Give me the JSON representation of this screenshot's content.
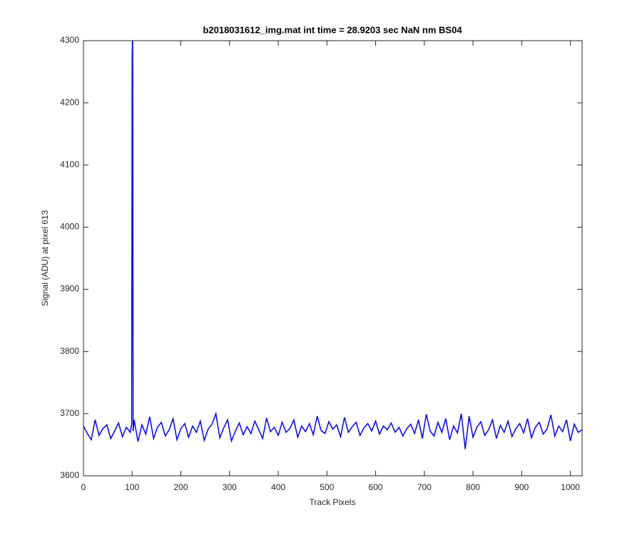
{
  "chart_data": {
    "type": "line",
    "title": "b2018031612_img.mat int time = 28.9203 sec  NaN nm BS04",
    "x_label": "Track Pixels",
    "y_label": "Signal (ADU) at pixel 613",
    "x": [
      0,
      8,
      16,
      24,
      32,
      40,
      48,
      56,
      64,
      72,
      80,
      88,
      96,
      99,
      100,
      101,
      102,
      104,
      112,
      120,
      128,
      136,
      144,
      152,
      160,
      168,
      176,
      184,
      192,
      200,
      208,
      216,
      224,
      232,
      240,
      248,
      256,
      264,
      272,
      280,
      288,
      296,
      304,
      312,
      320,
      328,
      336,
      344,
      352,
      360,
      368,
      376,
      384,
      392,
      400,
      408,
      416,
      424,
      432,
      440,
      448,
      456,
      464,
      472,
      480,
      488,
      496,
      504,
      512,
      520,
      528,
      536,
      544,
      552,
      560,
      568,
      576,
      584,
      592,
      600,
      608,
      616,
      624,
      632,
      640,
      648,
      656,
      664,
      672,
      680,
      688,
      696,
      704,
      712,
      720,
      728,
      736,
      744,
      752,
      760,
      768,
      776,
      784,
      792,
      800,
      808,
      816,
      824,
      832,
      840,
      848,
      856,
      864,
      872,
      880,
      888,
      896,
      904,
      912,
      920,
      928,
      936,
      944,
      952,
      960,
      968,
      976,
      984,
      992,
      1000,
      1008,
      1016,
      1024
    ],
    "values": [
      3680,
      3668,
      3658,
      3690,
      3665,
      3676,
      3682,
      3660,
      3672,
      3685,
      3663,
      3678,
      3670,
      3683,
      4280,
      4300,
      3672,
      3690,
      3655,
      3682,
      3667,
      3695,
      3660,
      3678,
      3686,
      3664,
      3674,
      3692,
      3658,
      3676,
      3684,
      3662,
      3680,
      3670,
      3688,
      3657,
      3675,
      3683,
      3700,
      3661,
      3677,
      3690,
      3656,
      3672,
      3685,
      3666,
      3679,
      3668,
      3688,
      3674,
      3660,
      3693,
      3671,
      3678,
      3665,
      3686,
      3670,
      3676,
      3690,
      3662,
      3680,
      3671,
      3684,
      3666,
      3696,
      3673,
      3668,
      3687,
      3675,
      3682,
      3663,
      3694,
      3670,
      3679,
      3686,
      3665,
      3677,
      3684,
      3672,
      3688,
      3667,
      3680,
      3674,
      3685,
      3670,
      3678,
      3664,
      3676,
      3683,
      3668,
      3690,
      3660,
      3699,
      3672,
      3664,
      3686,
      3670,
      3692,
      3658,
      3680,
      3669,
      3700,
      3643,
      3696,
      3662,
      3678,
      3687,
      3665,
      3674,
      3690,
      3660,
      3681,
      3670,
      3688,
      3663,
      3676,
      3684,
      3669,
      3692,
      3661,
      3678,
      3686,
      3667,
      3675,
      3698,
      3664,
      3680,
      3671,
      3690,
      3656,
      3683,
      3670,
      3674
    ],
    "color": "#0000ff",
    "xlim": [
      0,
      1024
    ],
    "xticks": [
      0,
      100,
      200,
      300,
      400,
      500,
      600,
      700,
      800,
      900,
      1000
    ],
    "ylim": [
      3600,
      4300
    ],
    "yticks": [
      3600,
      3700,
      3800,
      3900,
      4000,
      4100,
      4200,
      4300
    ]
  }
}
